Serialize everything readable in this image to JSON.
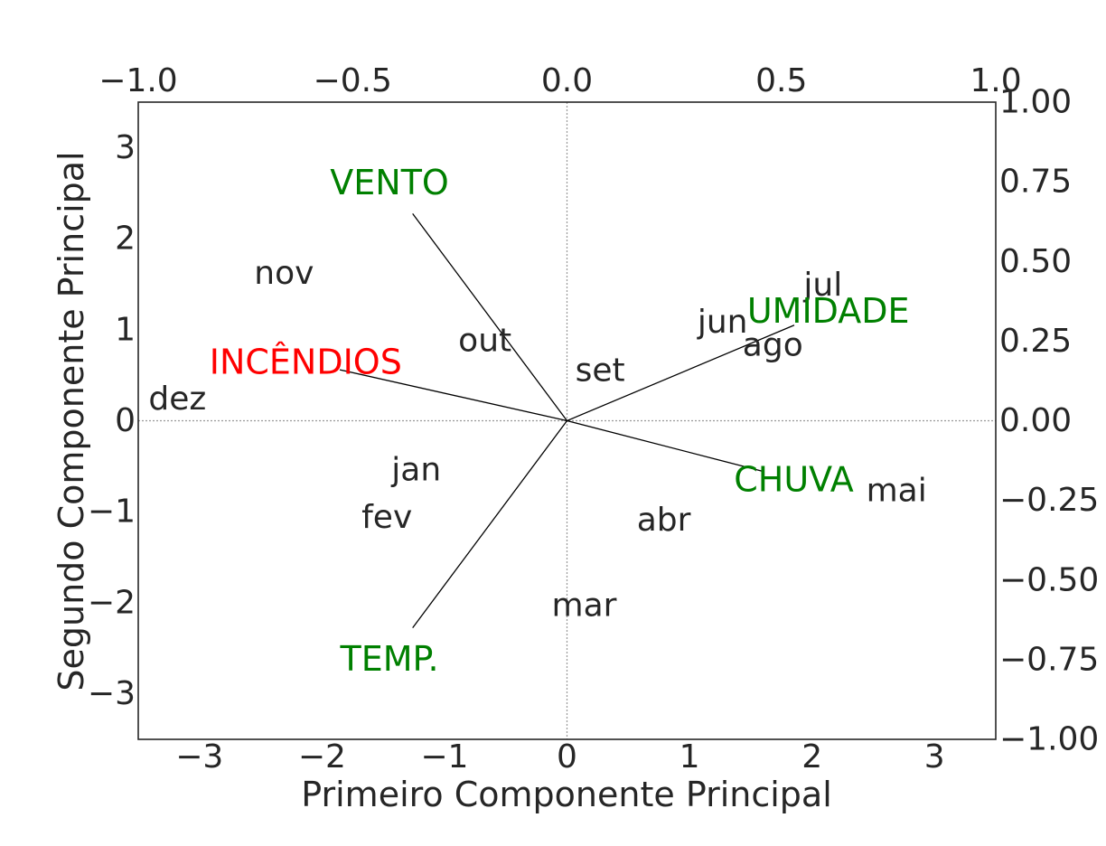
{
  "chart_data": {
    "type": "scatter",
    "subtype": "biplot",
    "title": "",
    "xlabel": "Primeiro Componente Principal",
    "ylabel": "Segundo Componente Principal",
    "xlim": [
      -3.5,
      3.5
    ],
    "ylim": [
      -3.5,
      3.5
    ],
    "xticks": [
      -3,
      -2,
      -1,
      0,
      1,
      2,
      3
    ],
    "yticks": [
      -3,
      -2,
      -1,
      0,
      1,
      2,
      3
    ],
    "top_axis": {
      "lim": [
        -1.0,
        1.0
      ],
      "ticks": [
        "−1.0",
        "−0.5",
        "0.0",
        "0.5",
        "1.0"
      ]
    },
    "right_axis": {
      "lim": [
        -1.0,
        1.0
      ],
      "ticks": [
        "1.00",
        "0.75",
        "0.50",
        "0.25",
        "0.00",
        "−0.25",
        "−0.50",
        "−0.75",
        "−1.00"
      ]
    },
    "grid": false,
    "zero_lines": true,
    "points": [
      {
        "label": "nov",
        "x": -2.31,
        "y": 1.62
      },
      {
        "label": "dez",
        "x": -3.18,
        "y": 0.24
      },
      {
        "label": "out",
        "x": -0.67,
        "y": 0.88
      },
      {
        "label": "set",
        "x": 0.27,
        "y": 0.55
      },
      {
        "label": "jun",
        "x": 1.27,
        "y": 1.08
      },
      {
        "label": "ago",
        "x": 1.68,
        "y": 0.83
      },
      {
        "label": "jul",
        "x": 2.09,
        "y": 1.49
      },
      {
        "label": "jan",
        "x": -1.23,
        "y": -0.54
      },
      {
        "label": "fev",
        "x": -1.47,
        "y": -1.06
      },
      {
        "label": "abr",
        "x": 0.79,
        "y": -1.09
      },
      {
        "label": "mai",
        "x": 2.69,
        "y": -0.77
      },
      {
        "label": "mar",
        "x": 0.14,
        "y": -2.03
      }
    ],
    "loadings": [
      {
        "label": "VENTO",
        "x": -0.36,
        "y": 0.65,
        "color": "#008000"
      },
      {
        "label": "UMIDADE",
        "x": 0.53,
        "y": 0.3,
        "color": "#008000"
      },
      {
        "label": "INCÊNDIOS",
        "x": -0.53,
        "y": 0.16,
        "color": "#ff0000"
      },
      {
        "label": "CHUVA",
        "x": 0.46,
        "y": -0.16,
        "color": "#008000"
      },
      {
        "label": "TEMP.",
        "x": -0.36,
        "y": -0.65,
        "color": "#008000"
      }
    ],
    "colors": {
      "text": "#262626",
      "arrow": "#000000",
      "zero_line": "#999999"
    }
  }
}
